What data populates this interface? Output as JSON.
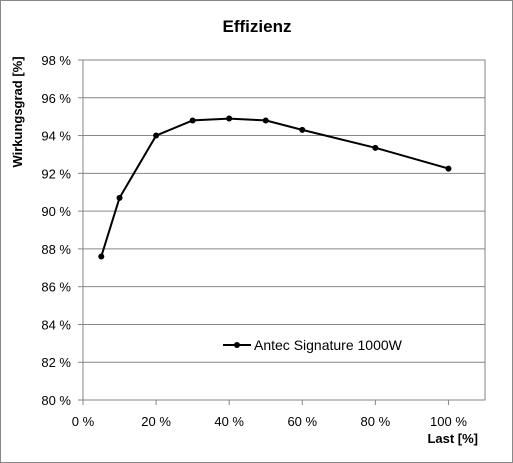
{
  "chart_data": {
    "type": "line",
    "title": "Effizienz",
    "xlabel": "Last [%]",
    "ylabel": "Wirkungsgrad [%]",
    "xlim": [
      0,
      110
    ],
    "ylim": [
      80,
      98
    ],
    "x_ticks": [
      {
        "value": 0,
        "label": "0 %"
      },
      {
        "value": 20,
        "label": "20 %"
      },
      {
        "value": 40,
        "label": "40 %"
      },
      {
        "value": 60,
        "label": "60 %"
      },
      {
        "value": 80,
        "label": "80 %"
      },
      {
        "value": 100,
        "label": "100 %"
      }
    ],
    "y_ticks": [
      {
        "value": 80,
        "label": "80 %"
      },
      {
        "value": 82,
        "label": "82 %"
      },
      {
        "value": 84,
        "label": "84 %"
      },
      {
        "value": 86,
        "label": "86 %"
      },
      {
        "value": 88,
        "label": "88 %"
      },
      {
        "value": 90,
        "label": "90 %"
      },
      {
        "value": 92,
        "label": "92 %"
      },
      {
        "value": 94,
        "label": "94 %"
      },
      {
        "value": 96,
        "label": "96 %"
      },
      {
        "value": 98,
        "label": "98 %"
      }
    ],
    "grid": "horizontal",
    "legend_position": "bottom-center",
    "series": [
      {
        "name": "Antec Signature 1000W",
        "color": "#000000",
        "marker": "circle",
        "points": [
          {
            "x": 5,
            "y": 87.6
          },
          {
            "x": 10,
            "y": 90.7
          },
          {
            "x": 20,
            "y": 94.0
          },
          {
            "x": 30,
            "y": 94.8
          },
          {
            "x": 40,
            "y": 94.9
          },
          {
            "x": 50,
            "y": 94.8
          },
          {
            "x": 60,
            "y": 94.3
          },
          {
            "x": 80,
            "y": 93.35
          },
          {
            "x": 100,
            "y": 92.25
          }
        ]
      }
    ]
  }
}
